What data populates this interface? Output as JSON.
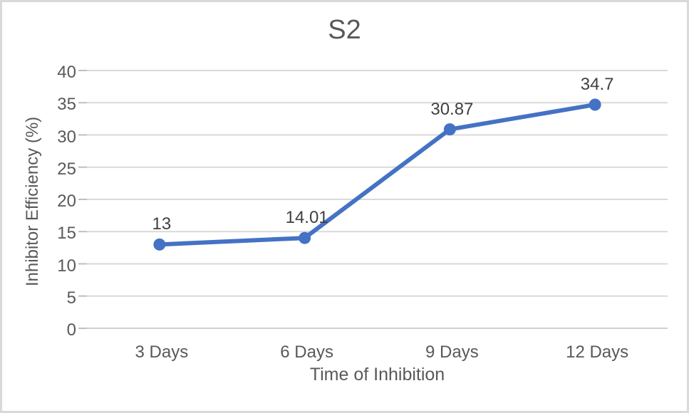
{
  "chart_data": {
    "type": "line",
    "title": "S2",
    "xlabel": "Time of Inhibition",
    "ylabel": "Inhibitor Efficiency (%)",
    "categories": [
      "3 Days",
      "6 Days",
      "9 Days",
      "12 Days"
    ],
    "series": [
      {
        "name": "S2",
        "values": [
          13,
          14.01,
          30.87,
          34.7
        ],
        "data_labels": [
          "13",
          "14.01",
          "30.87",
          "34.7"
        ],
        "color": "#4472C4",
        "marker": "circle"
      }
    ],
    "ylim": [
      0,
      40
    ],
    "ytick_step": 5,
    "yticks": [
      0,
      5,
      10,
      15,
      20,
      25,
      30,
      35,
      40
    ],
    "grid": true,
    "legend_position": "none",
    "colors": {
      "series": "#4472C4",
      "gridline": "#D9D9D9",
      "baseline": "#D0D0D0",
      "tick_mark": "#BFBFBF",
      "axis_text": "#595959",
      "data_label_text": "#404040",
      "background": "#FFFFFF",
      "frame_border": "#D9D9D9"
    }
  }
}
